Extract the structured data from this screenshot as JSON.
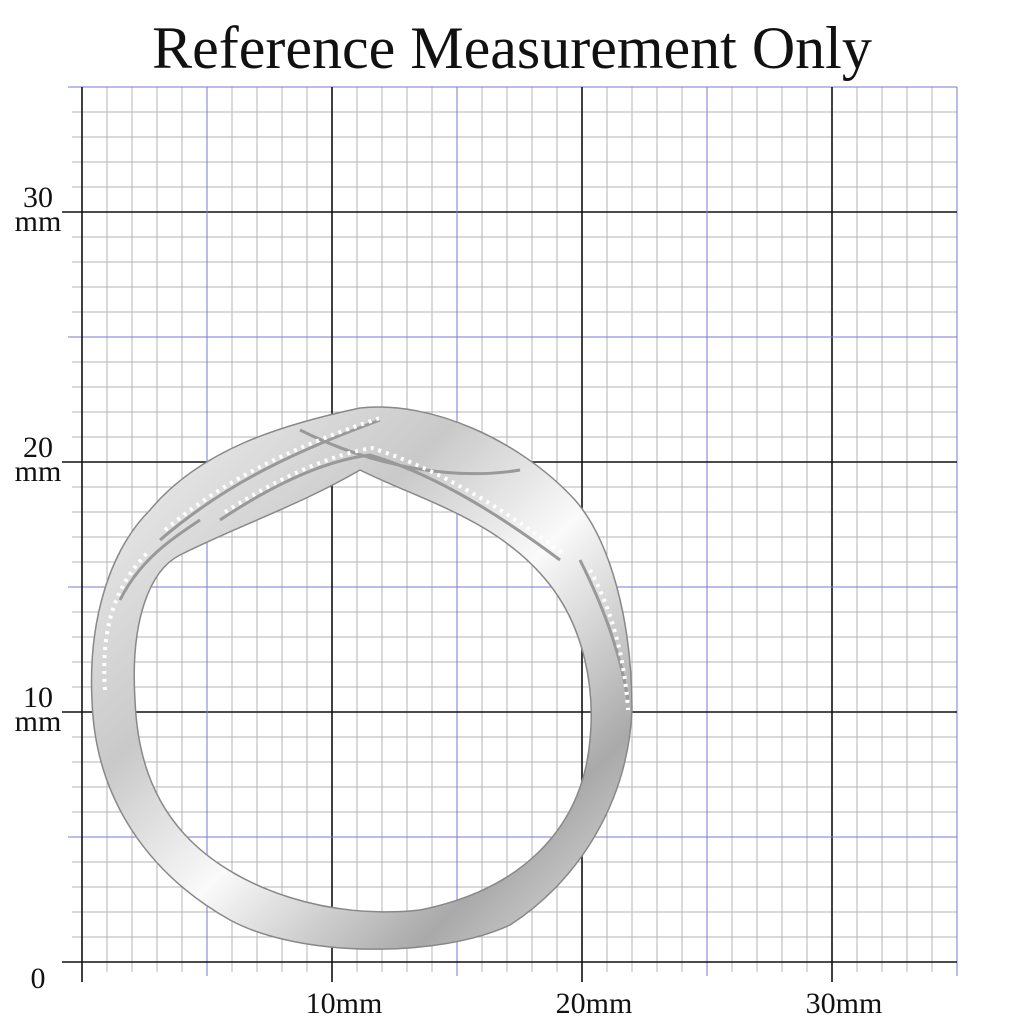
{
  "title": "Reference Measurement Only",
  "y_axis": [
    {
      "value": "30",
      "unit": "mm"
    },
    {
      "value": "20",
      "unit": "mm"
    },
    {
      "value": "10",
      "unit": "mm"
    },
    {
      "value": "0"
    }
  ],
  "x_axis": [
    "10mm",
    "20mm",
    "30mm"
  ]
}
